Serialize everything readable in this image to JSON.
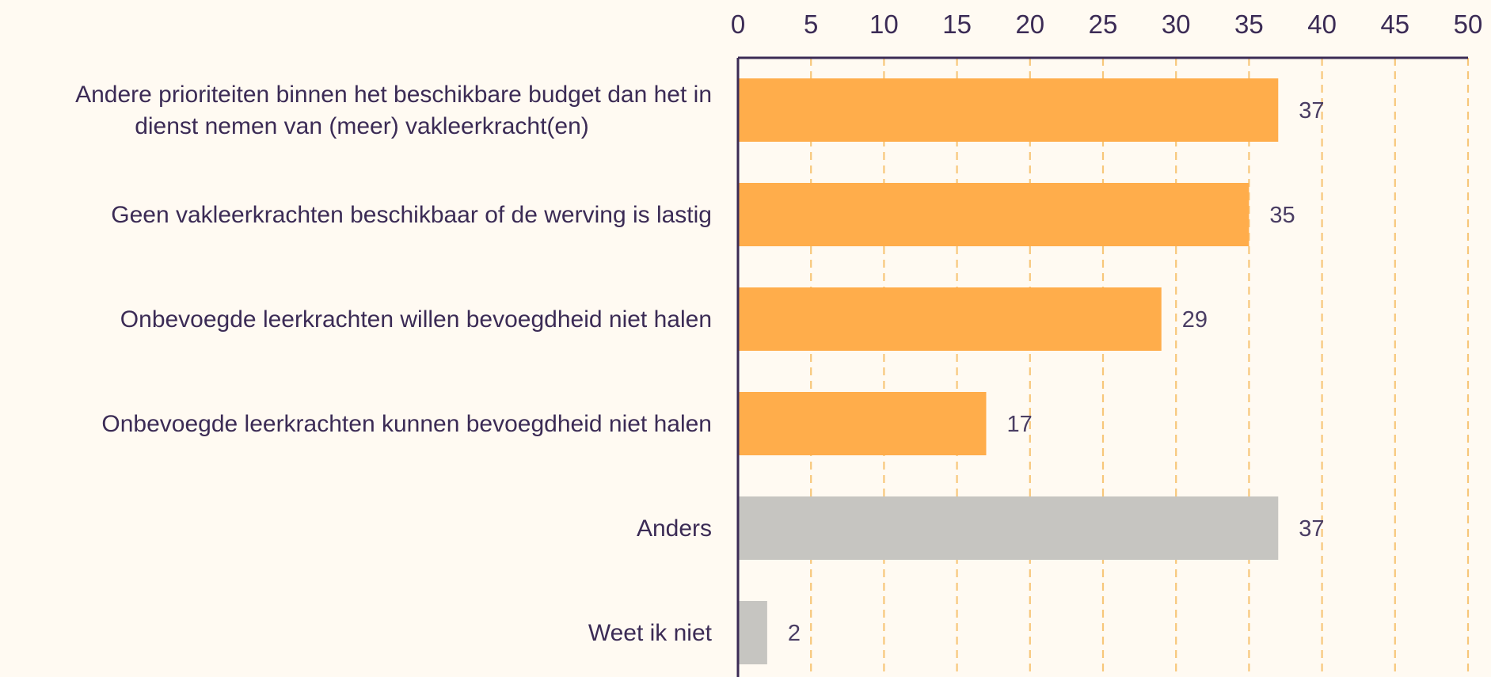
{
  "chart_data": {
    "type": "bar",
    "orientation": "horizontal",
    "title": "",
    "xlabel": "",
    "ylabel": "",
    "xlim": [
      0,
      50
    ],
    "x_ticks": [
      0,
      5,
      10,
      15,
      20,
      25,
      30,
      35,
      40,
      45,
      50
    ],
    "grid": true,
    "legend": "none",
    "categories": [
      [
        "Andere prioriteiten binnen het beschikbare budget dan het in",
        "dienst nemen van (meer) vakleerkracht(en)"
      ],
      [
        "Geen vakleerkrachten beschikbaar of de werving is lastig"
      ],
      [
        "Onbevoegde leerkrachten willen bevoegdheid niet halen"
      ],
      [
        "Onbevoegde leerkrachten kunnen bevoegdheid niet halen"
      ],
      [
        "Anders"
      ],
      [
        "Weet ik niet"
      ]
    ],
    "values": [
      37,
      35,
      29,
      17,
      37,
      2
    ],
    "value_labels": [
      "37",
      "35",
      "29",
      "17",
      "37",
      "2"
    ],
    "bar_colors": [
      "#ffad4b",
      "#ffad4b",
      "#ffad4b",
      "#ffad4b",
      "#c6c5c1",
      "#c6c5c1"
    ],
    "colors": {
      "background": "#fffaf2",
      "text": "#3b2b55",
      "axis": "#3b2b55",
      "grid": "#f7c77a"
    }
  }
}
